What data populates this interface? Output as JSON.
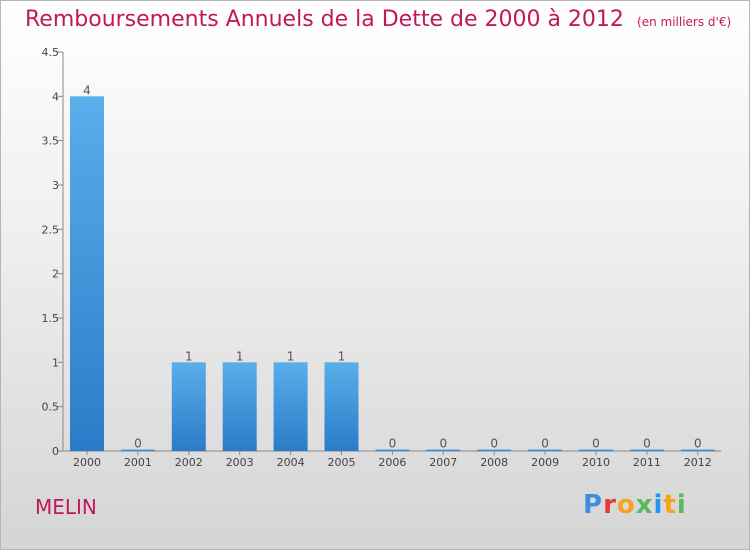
{
  "title": "Remboursements Annuels de la Dette de 2000 à 2012",
  "unit": "(en milliers d'€)",
  "commune": "MELIN",
  "logo": {
    "letters": [
      "P",
      "r",
      "o",
      "x",
      "i",
      "t",
      "i"
    ],
    "colors": [
      "#3b8ee0",
      "#e53935",
      "#f7a21b",
      "#5cb85c",
      "#2196f3",
      "#f7a21b",
      "#5cb85c"
    ]
  },
  "chart_data": {
    "type": "bar",
    "title": "Remboursements Annuels de la Dette de 2000 à 2012",
    "xlabel": "",
    "ylabel": "",
    "categories": [
      "2000",
      "2001",
      "2002",
      "2003",
      "2004",
      "2005",
      "2006",
      "2007",
      "2008",
      "2009",
      "2010",
      "2011",
      "2012"
    ],
    "values": [
      4,
      0,
      1,
      1,
      1,
      1,
      0,
      0,
      0,
      0,
      0,
      0,
      0
    ],
    "data_labels": [
      "4",
      "0",
      "1",
      "1",
      "1",
      "1",
      "0",
      "0",
      "0",
      "0",
      "0",
      "0",
      "0"
    ],
    "ylim": [
      0,
      4.5
    ],
    "yticks": [
      0,
      0.5,
      1,
      1.5,
      2,
      2.5,
      3,
      3.5,
      4,
      4.5
    ],
    "ytick_labels": [
      "0",
      "0.5",
      "1",
      "1.5",
      "2",
      "2.5",
      "3",
      "3.5",
      "4",
      "4.5"
    ],
    "grid": false,
    "bar_color": "#3a8fd8"
  }
}
